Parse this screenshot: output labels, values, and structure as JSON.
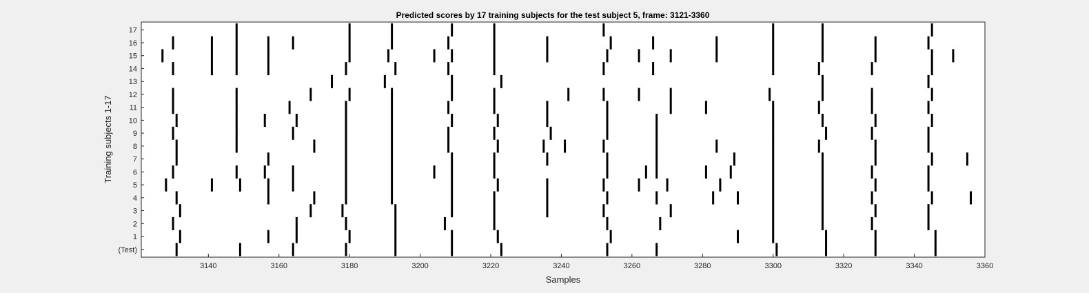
{
  "chart_data": {
    "type": "heatmap",
    "title": "Predicted scores by 17 training subjects for the test subject 5, frame: 3121-3360",
    "xlabel": "Samples",
    "ylabel": "Training subjects 1-17",
    "xlim": [
      3121,
      3360
    ],
    "x_ticks": [
      3140,
      3160,
      3180,
      3200,
      3220,
      3240,
      3260,
      3280,
      3300,
      3320,
      3340,
      3360
    ],
    "y_tick_labels": [
      "(Test)",
      "1",
      "2",
      "3",
      "4",
      "5",
      "6",
      "7",
      "8",
      "9",
      "10",
      "11",
      "12",
      "13",
      "14",
      "15",
      "16",
      "17"
    ],
    "grid": false,
    "legend": "none",
    "colors": {
      "mark": "#000000",
      "plot_background": "#ffffff",
      "figure_background": "#f0f0f0"
    },
    "rows": [
      {
        "label": "(Test)",
        "spikes": [
          3131,
          3149,
          3164,
          3179,
          3193,
          3209,
          3223,
          3253,
          3267,
          3301,
          3315,
          3329,
          3346
        ]
      },
      {
        "label": "1",
        "spikes": [
          3132,
          3157,
          3165,
          3180,
          3193,
          3209,
          3222,
          3254,
          3290,
          3300,
          3315,
          3329,
          3346
        ]
      },
      {
        "label": "2",
        "spikes": [
          3130,
          3165,
          3179,
          3193,
          3207,
          3221,
          3253,
          3268,
          3300,
          3314,
          3328,
          3344
        ]
      },
      {
        "label": "3",
        "spikes": [
          3132,
          3169,
          3178,
          3193,
          3209,
          3221,
          3236,
          3252,
          3271,
          3300,
          3314,
          3329,
          3344
        ]
      },
      {
        "label": "4",
        "spikes": [
          3131,
          3157,
          3170,
          3179,
          3192,
          3209,
          3221,
          3236,
          3253,
          3267,
          3283,
          3290,
          3300,
          3314,
          3328,
          3345,
          3356
        ]
      },
      {
        "label": "5",
        "spikes": [
          3128,
          3141,
          3149,
          3157,
          3164,
          3179,
          3192,
          3209,
          3222,
          3236,
          3252,
          3262,
          3270,
          3285,
          3300,
          3314,
          3329,
          3344
        ]
      },
      {
        "label": "6",
        "spikes": [
          3130,
          3148,
          3156,
          3164,
          3179,
          3192,
          3204,
          3209,
          3221,
          3253,
          3264,
          3267,
          3281,
          3288,
          3300,
          3314,
          3328,
          3344
        ]
      },
      {
        "label": "7",
        "spikes": [
          3131,
          3157,
          3179,
          3192,
          3209,
          3221,
          3236,
          3253,
          3267,
          3289,
          3300,
          3314,
          3329,
          3345,
          3355
        ]
      },
      {
        "label": "8",
        "spikes": [
          3131,
          3148,
          3170,
          3179,
          3192,
          3208,
          3222,
          3235,
          3241,
          3252,
          3267,
          3284,
          3300,
          3313,
          3329,
          3344
        ]
      },
      {
        "label": "9",
        "spikes": [
          3130,
          3148,
          3164,
          3179,
          3192,
          3208,
          3221,
          3237,
          3253,
          3267,
          3300,
          3315,
          3328,
          3344
        ]
      },
      {
        "label": "10",
        "spikes": [
          3131,
          3148,
          3156,
          3165,
          3179,
          3192,
          3209,
          3222,
          3236,
          3253,
          3267,
          3300,
          3314,
          3329,
          3345
        ]
      },
      {
        "label": "11",
        "spikes": [
          3130,
          3148,
          3163,
          3179,
          3192,
          3208,
          3221,
          3236,
          3253,
          3271,
          3281,
          3300,
          3313,
          3328,
          3344
        ]
      },
      {
        "label": "12",
        "spikes": [
          3130,
          3148,
          3169,
          3180,
          3192,
          3209,
          3221,
          3242,
          3252,
          3262,
          3271,
          3299,
          3314,
          3328,
          3345
        ]
      },
      {
        "label": "13",
        "spikes": [
          3175,
          3190,
          3209,
          3223,
          3314,
          3344
        ]
      },
      {
        "label": "14",
        "spikes": [
          3130,
          3141,
          3148,
          3157,
          3179,
          3193,
          3208,
          3221,
          3252,
          3266,
          3300,
          3313,
          3328,
          3345
        ]
      },
      {
        "label": "15",
        "spikes": [
          3127,
          3141,
          3148,
          3157,
          3180,
          3191,
          3204,
          3209,
          3221,
          3236,
          3253,
          3262,
          3271,
          3284,
          3300,
          3314,
          3329,
          3345,
          3351
        ]
      },
      {
        "label": "16",
        "spikes": [
          3130,
          3141,
          3148,
          3157,
          3164,
          3180,
          3192,
          3208,
          3221,
          3236,
          3254,
          3266,
          3284,
          3300,
          3314,
          3329,
          3344
        ]
      },
      {
        "label": "17",
        "spikes": [
          3148,
          3180,
          3192,
          3209,
          3221,
          3252,
          3300,
          3314,
          3345
        ]
      }
    ]
  }
}
